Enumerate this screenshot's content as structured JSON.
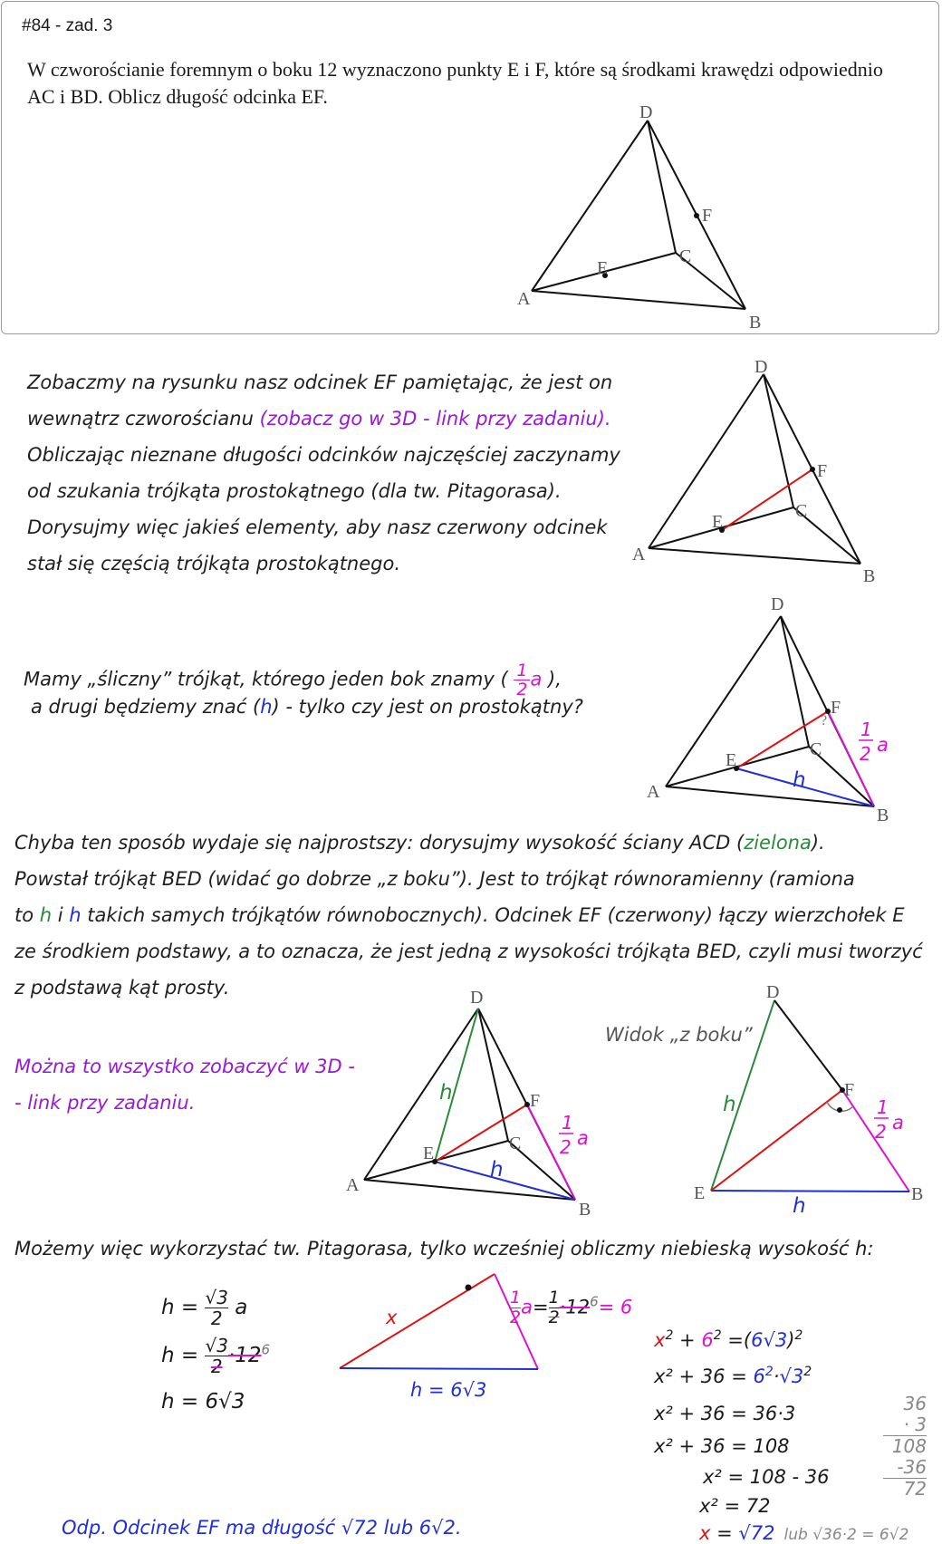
{
  "header": "#84 - zad. 3",
  "task": "W czworościanie foremnym o boku 12 wyznaczono punkty E i F, które są środkami krawędzi odpowiednio AC i BD. Oblicz długość odcinka EF.",
  "vertices": {
    "A": "A",
    "B": "B",
    "C": "C",
    "D": "D",
    "E": "E",
    "F": "F"
  },
  "para1": [
    "Zobaczmy na rysunku nasz odcinek EF pamiętając, że jest on",
    "wewnątrz czworościanu ",
    "(zobacz go w 3D - link przy zadaniu).",
    "Obliczając nieznane długości odcinków najczęściej zaczynamy",
    "od szukania trójkąta prostokątnego (dla tw. Pitagorasa).",
    "Dorysujmy więc jakieś elementy, aby nasz czerwony odcinek",
    "stał się częścią trójkąta prostokątnego."
  ],
  "para2": {
    "l1a": "Mamy „śliczny” trójkąt, którego jeden bok znamy (",
    "l1b": "),",
    "l2a": "a drugi będziemy znać (",
    "l2h": "h",
    "l2b": ") - tylko czy jest on prostokątny?"
  },
  "half_a": {
    "num": "1",
    "den": "2",
    "var": "a"
  },
  "h": "h",
  "question_mark": "?",
  "para3": {
    "l1a": "Chyba ten sposób wydaje się najprostszy: dorysujmy wysokość ściany ACD (",
    "l1g": "zielona",
    "l1b": ").",
    "l2": "Powstał trójkąt BED (widać go dobrze „z boku”). Jest to trójkąt równoramienny (ramiona",
    "l3a": "to ",
    "l3h1": "h",
    "l3i": " i ",
    "l3h2": "h",
    "l3b": " takich samych trójkątów równobocznych). Odcinek EF (czerwony) łączy wierzchołek E",
    "l4": "ze środkiem podstawy, a to oznacza, że jest jedną z wysokości trójkąta BED, czyli musi tworzyć",
    "l5": "z podstawą kąt prosty."
  },
  "link3d": [
    "Można to wszystko zobaczyć w 3D -",
    "- link przy zadaniu."
  ],
  "side_view": "Widok „z boku”",
  "para4": "Możemy więc wykorzystać tw. Pitagorasa, tylko wcześniej obliczmy niebieską wysokość h:",
  "calc_h": {
    "r1": {
      "lhs": "h =",
      "num": "√3",
      "den": "2",
      "rest": "a"
    },
    "r2": {
      "lhs": "h =",
      "num": "√3",
      "den": "2",
      "rest": "·12",
      "sup": "6"
    },
    "r3": "h = 6√3"
  },
  "triangle": {
    "x": "x",
    "h": "h = 6√3"
  },
  "half_calc": {
    "lhs_num": "1",
    "lhs_den": "2",
    "lhs_var": "a",
    "eq": "=",
    "num": "1",
    "den": "2",
    "mul": "·12",
    "sup": "6",
    "res": "= 6"
  },
  "pyth": [
    {
      "x": "x",
      "p": "2",
      "mid": " + ",
      "six": "6",
      "p2": "2",
      "rest": " =(",
      "blu": "6√3",
      "close": ")",
      "p3": "2"
    },
    {
      "text": "x² + 36 = ",
      "r1": "6",
      "r2": "2",
      "r3": "·",
      "r4": "√3",
      "r5": "2"
    },
    {
      "text": "x² + 36 = 36·3"
    },
    {
      "text": "x² + 36 = 108"
    },
    {
      "text": "x² = 108 - 36"
    },
    {
      "text": "x² = 72"
    },
    {
      "x": "x",
      "eq": " = ",
      "val": "√72",
      "grey": "lub √36·2 = 6√2"
    }
  ],
  "side_calc": [
    "36",
    "· 3",
    "108",
    "-36",
    "72"
  ],
  "answer": "Odp.   Odcinek EF ma długość √72  lub 6√2."
}
